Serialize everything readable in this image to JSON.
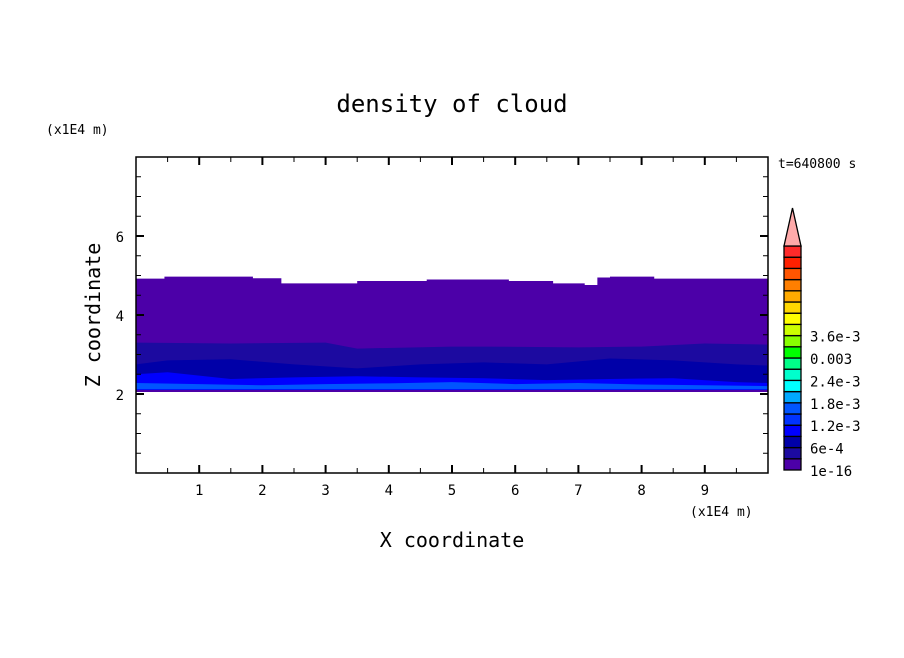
{
  "chart_data": {
    "type": "heatmap",
    "title": "density of cloud",
    "xlabel": "X coordinate",
    "ylabel": "Z coordinate",
    "x_unit": "(x1E4 m)",
    "y_unit": "(x1E4 m)",
    "time_label": "t=640800 s",
    "xlim": [
      0,
      10
    ],
    "ylim": [
      0,
      8
    ],
    "x_ticks": [
      1,
      2,
      3,
      4,
      5,
      6,
      7,
      8,
      9
    ],
    "y_ticks": [
      2,
      4,
      6
    ],
    "grid": false,
    "colorbar": {
      "colors": [
        "#4c00a8",
        "#1c0aa0",
        "#0000a8",
        "#0000ff",
        "#0033ff",
        "#0055ff",
        "#00a8ff",
        "#00ffff",
        "#00ffcc",
        "#00ff88",
        "#00ff00",
        "#88ff00",
        "#ccff00",
        "#ffff00",
        "#ffd700",
        "#ffaa00",
        "#ff7f00",
        "#ff5500",
        "#ff2000",
        "#ff2a2a"
      ],
      "extend_color": "#ffaaaa",
      "labels": [
        "1e-16",
        "6e-4",
        "1.2e-3",
        "1.8e-3",
        "2.4e-3",
        "0.003",
        "3.6e-3"
      ],
      "label_levels": [
        0,
        2,
        4,
        6,
        8,
        10,
        12
      ]
    },
    "layers": [
      {
        "color": "#4c00a8",
        "bottom": 2.05,
        "top_x": [
          0,
          0.45,
          0.45,
          1.85,
          1.85,
          2.3,
          2.3,
          3.5,
          3.5,
          4.6,
          4.6,
          5.9,
          5.9,
          6.6,
          6.6,
          7.1,
          7.1,
          7.3,
          7.3,
          7.5,
          7.5,
          8.2,
          8.2,
          9.9,
          10
        ],
        "top_z": [
          4.92,
          4.92,
          4.97,
          4.97,
          4.93,
          4.93,
          4.8,
          4.8,
          4.86,
          4.86,
          4.9,
          4.9,
          4.86,
          4.86,
          4.8,
          4.8,
          4.76,
          4.76,
          4.95,
          4.95,
          4.97,
          4.97,
          4.92,
          4.92,
          4.92
        ]
      },
      {
        "color": "#1c0aa0",
        "bottom": 2.05,
        "top_x": [
          0,
          1.5,
          3,
          3.5,
          5,
          5.5,
          7,
          8,
          9,
          10
        ],
        "top_z": [
          3.3,
          3.28,
          3.3,
          3.15,
          3.2,
          3.2,
          3.18,
          3.2,
          3.28,
          3.25
        ]
      },
      {
        "color": "#0000a8",
        "bottom": 2.05,
        "top_x": [
          0,
          0.5,
          1.5,
          2.5,
          3.5,
          4.5,
          5.5,
          6.5,
          7.5,
          8.5,
          9.5,
          10
        ],
        "top_z": [
          2.75,
          2.85,
          2.88,
          2.75,
          2.65,
          2.75,
          2.8,
          2.75,
          2.9,
          2.85,
          2.75,
          2.72
        ]
      },
      {
        "color": "#0000ff",
        "bottom": 2.05,
        "top_x": [
          0,
          0.5,
          1.5,
          2.5,
          3.5,
          4.5,
          5.5,
          6.5,
          7.5,
          8.5,
          9.5,
          10
        ],
        "top_z": [
          2.5,
          2.55,
          2.38,
          2.42,
          2.45,
          2.42,
          2.4,
          2.35,
          2.38,
          2.4,
          2.3,
          2.28
        ]
      },
      {
        "color": "#0055ff",
        "bottom": 2.12,
        "top_x": [
          0,
          1,
          2,
          3,
          4,
          5,
          6,
          7,
          8,
          9,
          10
        ],
        "top_z": [
          2.28,
          2.25,
          2.22,
          2.25,
          2.27,
          2.3,
          2.25,
          2.28,
          2.24,
          2.22,
          2.2
        ]
      },
      {
        "color": "#4c00a8",
        "bottom": 2.05,
        "top_x": [
          0,
          10
        ],
        "top_z": [
          2.1,
          2.1
        ]
      }
    ]
  }
}
